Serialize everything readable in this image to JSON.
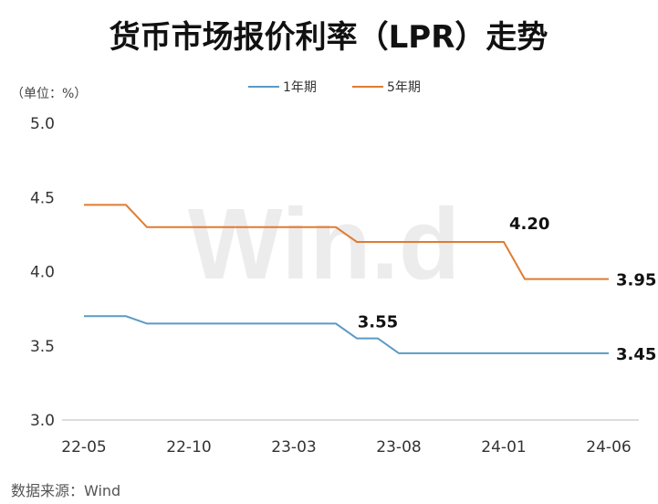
{
  "title": "货币市场报价利率（LPR）走势",
  "unit_label": "（单位：%）",
  "source": "数据来源：Wind",
  "watermark": "Win.d",
  "chart_data": {
    "type": "line",
    "x": [
      "22-05",
      "22-06",
      "22-07",
      "22-08",
      "22-09",
      "22-10",
      "22-11",
      "22-12",
      "23-01",
      "23-02",
      "23-03",
      "23-04",
      "23-05",
      "23-06",
      "23-07",
      "23-08",
      "23-09",
      "23-10",
      "23-11",
      "23-12",
      "24-01",
      "24-02",
      "24-03",
      "24-04",
      "24-05",
      "24-06"
    ],
    "x_tick_labels": [
      "22-05",
      "22-10",
      "23-03",
      "23-08",
      "24-01",
      "24-06"
    ],
    "ylim": [
      3.0,
      5.0
    ],
    "yticks": [
      "3.0",
      "3.5",
      "4.0",
      "4.5",
      "5.0"
    ],
    "grid": false,
    "legend_position": "top",
    "series": [
      {
        "name": "1年期",
        "color": "#5b9bc4",
        "values": [
          3.7,
          3.7,
          3.7,
          3.65,
          3.65,
          3.65,
          3.65,
          3.65,
          3.65,
          3.65,
          3.65,
          3.65,
          3.65,
          3.55,
          3.55,
          3.45,
          3.45,
          3.45,
          3.45,
          3.45,
          3.45,
          3.45,
          3.45,
          3.45,
          3.45,
          3.45
        ]
      },
      {
        "name": "5年期",
        "color": "#e07b32",
        "values": [
          4.45,
          4.45,
          4.45,
          4.3,
          4.3,
          4.3,
          4.3,
          4.3,
          4.3,
          4.3,
          4.3,
          4.3,
          4.3,
          4.2,
          4.2,
          4.2,
          4.2,
          4.2,
          4.2,
          4.2,
          4.2,
          3.95,
          3.95,
          3.95,
          3.95,
          3.95
        ]
      }
    ],
    "data_labels": [
      {
        "series": 0,
        "index": 14,
        "text": "3.55",
        "pos": "above"
      },
      {
        "series": 0,
        "index": 25,
        "text": "3.45",
        "pos": "right"
      },
      {
        "series": 1,
        "index": 20,
        "text": "4.20",
        "pos": "above-right"
      },
      {
        "series": 1,
        "index": 25,
        "text": "3.95",
        "pos": "right"
      }
    ]
  }
}
